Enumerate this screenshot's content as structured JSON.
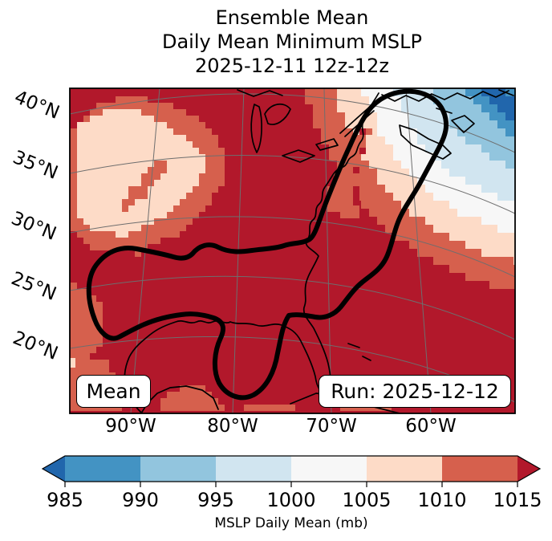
{
  "title": {
    "line1": "Ensemble Mean",
    "line2": "Daily Mean Minimum MSLP",
    "line3": "2025-12-11 12z-12z"
  },
  "map": {
    "badge_left": "Mean",
    "badge_right": "Run: 2025-12-12",
    "lat_ticks": [
      "40°N",
      "35°N",
      "30°N",
      "25°N",
      "20°N"
    ],
    "lon_ticks": [
      "90°W",
      "80°W",
      "70°W",
      "60°W"
    ]
  },
  "colorbar": {
    "label": "MSLP Daily Mean (mb)",
    "ticks": [
      "985",
      "990",
      "995",
      "1000",
      "1005",
      "1010",
      "1015"
    ]
  },
  "chart_data": {
    "type": "heatmap",
    "title": "Ensemble Mean Daily Mean Minimum MSLP 2025-12-11 12z-12z",
    "colorbar_label": "MSLP Daily Mean (mb)",
    "units": "mb",
    "levels": [
      985,
      990,
      995,
      1000,
      1005,
      1010,
      1015
    ],
    "extend": "both",
    "palette": {
      "dark_red": "#b2182b",
      "red": "#d6604d",
      "peach": "#fddbc7",
      "white": "#f7f7f7",
      "pale_blue": "#d1e5f0",
      "light_blue": "#92c5de",
      "blue": "#4393c3",
      "dark_blue": "#2166ac"
    },
    "segment_colors": [
      "#4393c3",
      "#92c5de",
      "#d1e5f0",
      "#f7f7f7",
      "#fddbc7",
      "#d6604d"
    ],
    "x_ticks": [
      "90°W",
      "80°W",
      "70°W",
      "60°W"
    ],
    "y_ticks": [
      "40°N",
      "35°N",
      "30°N",
      "25°N",
      "20°N"
    ],
    "annotations": [
      "Mean",
      "Run: 2025-12-12"
    ],
    "features": [
      "MSLP > 1015 mb (dark red) covers most of the central/southeastern US, Gulf of Mexico, Caribbean and western Atlantic",
      "1010-1015 mb (red) fringes on the western edge, Mexico, Yucatan and a band along the mid-Atlantic coast",
      "1005-1010 mb (pale peach) pocket over the south-central US plains",
      "Pressure falls northeastward in banded steps (1005 to below 985 mb) toward a low centered beyond the upper-right corner near the Gulf of St. Lawrence",
      "Blues (below 995 mb) cover Nova Scotia / Cape Breton in the upper-right corner",
      "A thick black ensemble contour encloses a region from Texas and the Gulf Coast with a southward lobe, extending northeastward in a narrow arm to a loop around Nova Scotia"
    ]
  }
}
